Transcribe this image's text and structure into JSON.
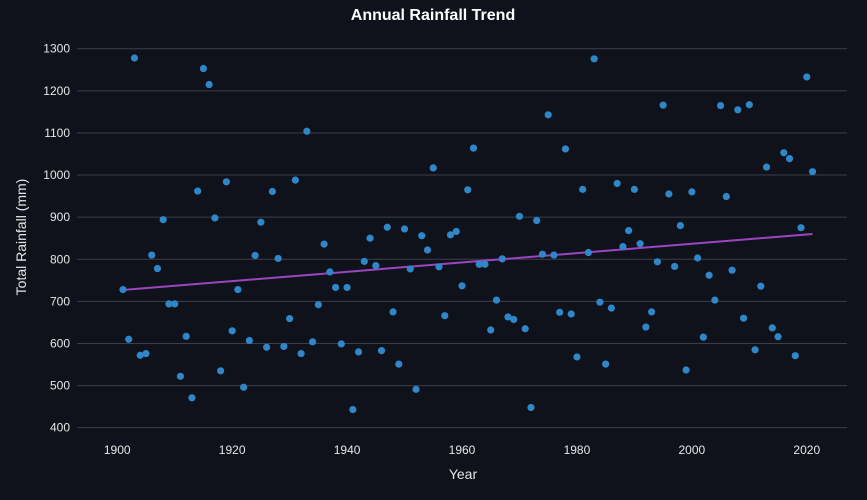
{
  "chart_data": {
    "type": "scatter",
    "title": "Annual Rainfall Trend",
    "xlabel": "Year",
    "ylabel": "Total Rainfall (mm)",
    "xlim": [
      1893,
      2027
    ],
    "ylim": [
      385,
      1335
    ],
    "xticks": [
      1900,
      1920,
      1940,
      1960,
      1980,
      2000,
      2020
    ],
    "yticks": [
      400,
      500,
      600,
      700,
      800,
      900,
      1000,
      1100,
      1200,
      1300
    ],
    "grid": "horizontal",
    "colors": {
      "background": "#0f121a",
      "points": "#2f86c8",
      "trend": "#9b45c0",
      "grid": "#3a3f4b",
      "text": "#e6e6e6"
    },
    "points": [
      [
        1901,
        728
      ],
      [
        1902,
        610
      ],
      [
        1903,
        1278
      ],
      [
        1904,
        572
      ],
      [
        1905,
        576
      ],
      [
        1906,
        810
      ],
      [
        1907,
        778
      ],
      [
        1908,
        894
      ],
      [
        1909,
        694
      ],
      [
        1910,
        694
      ],
      [
        1911,
        522
      ],
      [
        1912,
        617
      ],
      [
        1913,
        471
      ],
      [
        1914,
        962
      ],
      [
        1915,
        1253
      ],
      [
        1916,
        1215
      ],
      [
        1917,
        898
      ],
      [
        1918,
        535
      ],
      [
        1919,
        984
      ],
      [
        1920,
        630
      ],
      [
        1921,
        728
      ],
      [
        1922,
        496
      ],
      [
        1923,
        607
      ],
      [
        1924,
        809
      ],
      [
        1925,
        888
      ],
      [
        1926,
        591
      ],
      [
        1927,
        961
      ],
      [
        1928,
        802
      ],
      [
        1929,
        593
      ],
      [
        1930,
        659
      ],
      [
        1931,
        988
      ],
      [
        1932,
        576
      ],
      [
        1933,
        1104
      ],
      [
        1934,
        604
      ],
      [
        1935,
        692
      ],
      [
        1936,
        836
      ],
      [
        1937,
        770
      ],
      [
        1938,
        733
      ],
      [
        1939,
        599
      ],
      [
        1940,
        733
      ],
      [
        1941,
        443
      ],
      [
        1942,
        580
      ],
      [
        1943,
        795
      ],
      [
        1944,
        850
      ],
      [
        1945,
        785
      ],
      [
        1946,
        583
      ],
      [
        1947,
        876
      ],
      [
        1948,
        675
      ],
      [
        1949,
        551
      ],
      [
        1950,
        872
      ],
      [
        1951,
        777
      ],
      [
        1952,
        491
      ],
      [
        1953,
        856
      ],
      [
        1954,
        822
      ],
      [
        1955,
        1017
      ],
      [
        1956,
        782
      ],
      [
        1957,
        666
      ],
      [
        1958,
        858
      ],
      [
        1959,
        866
      ],
      [
        1960,
        737
      ],
      [
        1961,
        965
      ],
      [
        1962,
        1064
      ],
      [
        1963,
        788
      ],
      [
        1964,
        788
      ],
      [
        1965,
        632
      ],
      [
        1966,
        703
      ],
      [
        1967,
        801
      ],
      [
        1968,
        663
      ],
      [
        1969,
        657
      ],
      [
        1970,
        902
      ],
      [
        1971,
        635
      ],
      [
        1972,
        448
      ],
      [
        1973,
        892
      ],
      [
        1974,
        812
      ],
      [
        1975,
        1143
      ],
      [
        1976,
        810
      ],
      [
        1977,
        674
      ],
      [
        1978,
        1062
      ],
      [
        1979,
        670
      ],
      [
        1980,
        568
      ],
      [
        1981,
        966
      ],
      [
        1982,
        816
      ],
      [
        1983,
        1276
      ],
      [
        1984,
        698
      ],
      [
        1985,
        551
      ],
      [
        1986,
        684
      ],
      [
        1987,
        980
      ],
      [
        1988,
        830
      ],
      [
        1989,
        868
      ],
      [
        1990,
        966
      ],
      [
        1991,
        837
      ],
      [
        1992,
        639
      ],
      [
        1993,
        675
      ],
      [
        1994,
        794
      ],
      [
        1995,
        1166
      ],
      [
        1996,
        955
      ],
      [
        1997,
        783
      ],
      [
        1998,
        880
      ],
      [
        1999,
        537
      ],
      [
        2000,
        960
      ],
      [
        2001,
        803
      ],
      [
        2002,
        615
      ],
      [
        2003,
        762
      ],
      [
        2004,
        703
      ],
      [
        2005,
        1165
      ],
      [
        2006,
        949
      ],
      [
        2007,
        774
      ],
      [
        2008,
        1155
      ],
      [
        2009,
        660
      ],
      [
        2010,
        1167
      ],
      [
        2011,
        585
      ],
      [
        2012,
        736
      ],
      [
        2013,
        1019
      ],
      [
        2014,
        637
      ],
      [
        2015,
        616
      ],
      [
        2016,
        1053
      ],
      [
        2017,
        1039
      ],
      [
        2018,
        571
      ],
      [
        2019,
        875
      ],
      [
        2020,
        1233
      ],
      [
        2021,
        1008
      ]
    ],
    "trend_line": {
      "x": [
        1901,
        2021
      ],
      "y": [
        727,
        860
      ]
    }
  }
}
